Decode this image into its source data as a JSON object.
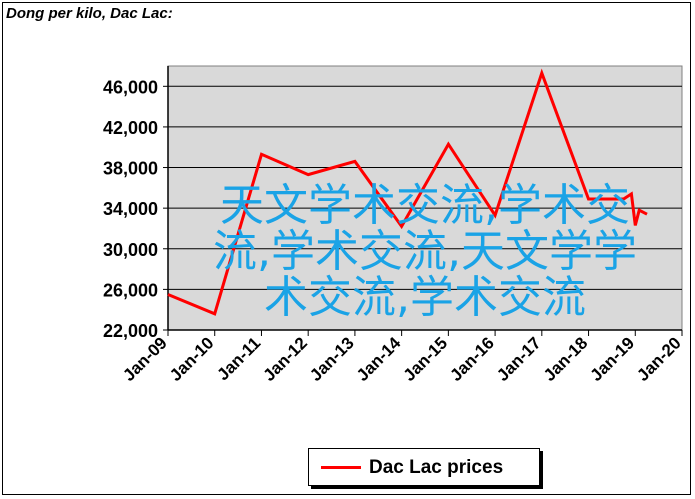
{
  "chart_data": {
    "type": "line",
    "title": "Dong per kilo, Dac Lac:",
    "xlabel": "",
    "ylabel": "",
    "x_tick_labels": [
      "Jan-09",
      "Jan-10",
      "Jan-11",
      "Jan-12",
      "Jan-13",
      "Jan-14",
      "Jan-15",
      "Jan-16",
      "Jan-17",
      "Jan-18",
      "Jan-19",
      "Jan-20"
    ],
    "y_tick_labels": [
      "22,000",
      "26,000",
      "30,000",
      "34,000",
      "38,000",
      "42,000",
      "46,000"
    ],
    "y_ticks": [
      22000,
      26000,
      30000,
      34000,
      38000,
      42000,
      46000
    ],
    "ylim": [
      22000,
      48000
    ],
    "xlim": [
      "2009-01",
      "2020-01"
    ],
    "grid": true,
    "legend_position": "bottom-center",
    "series": [
      {
        "name": "Dac Lac prices",
        "color": "#ff0000",
        "points": [
          {
            "x": "2009-01",
            "y": 25500
          },
          {
            "x": "2010-01",
            "y": 23600
          },
          {
            "x": "2011-01",
            "y": 39300
          },
          {
            "x": "2012-01",
            "y": 37300
          },
          {
            "x": "2013-01",
            "y": 38600
          },
          {
            "x": "2014-01",
            "y": 32200
          },
          {
            "x": "2015-01",
            "y": 40300
          },
          {
            "x": "2016-01",
            "y": 33300
          },
          {
            "x": "2017-01",
            "y": 47300
          },
          {
            "x": "2018-01",
            "y": 34900
          },
          {
            "x": "2018-10",
            "y": 34900
          },
          {
            "x": "2018-12",
            "y": 35400
          },
          {
            "x": "2019-01",
            "y": 32300
          },
          {
            "x": "2019-02",
            "y": 33800
          },
          {
            "x": "2019-04",
            "y": 33400
          }
        ]
      }
    ]
  },
  "colors": {
    "plot_background": "#d9d9d9",
    "series_line": "#ff0000",
    "overlay_text": "#1aa3e6"
  },
  "overlay": {
    "text": "天文学术交流,学术交流,学术交流,天文学学术交流,学术交流"
  }
}
